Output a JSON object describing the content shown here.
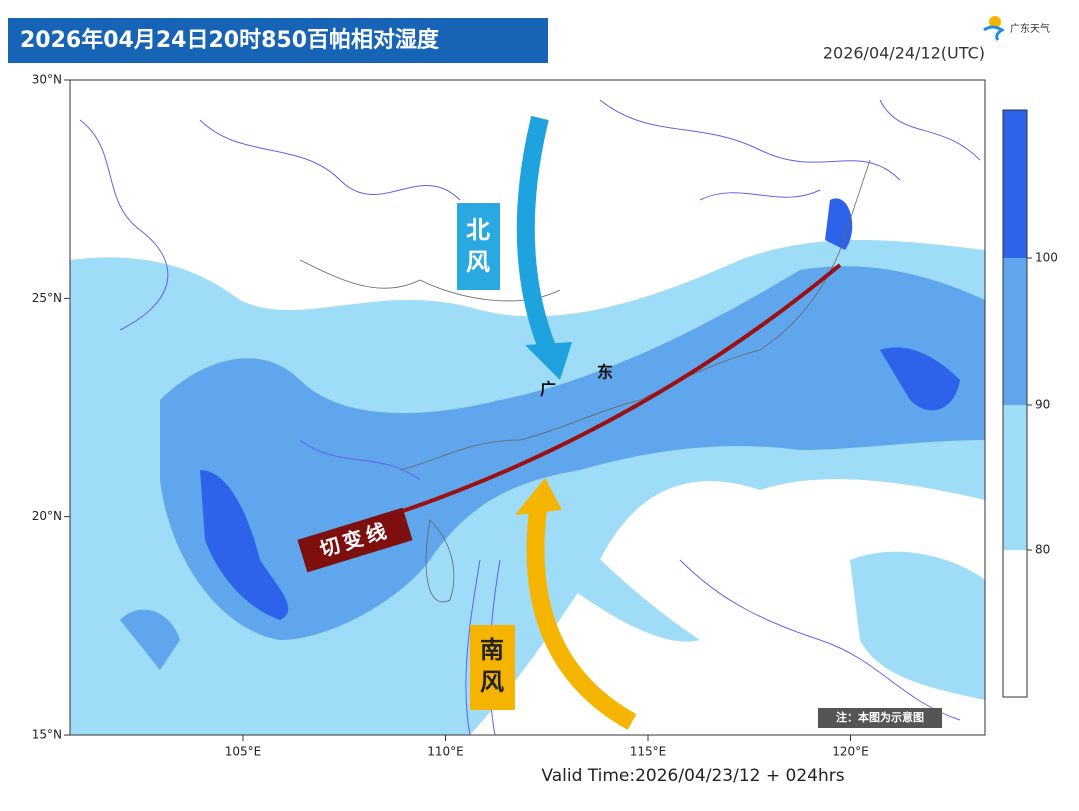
{
  "header": {
    "title": "2026年04月24日20时850百帕相对湿度",
    "time": "2026/04/24/12(UTC)",
    "logo": "广东天气"
  },
  "map": {
    "lat_ticks": [
      {
        "value": 30,
        "label": "30°N"
      },
      {
        "value": 25,
        "label": "25°N"
      },
      {
        "value": 20,
        "label": "20°N"
      },
      {
        "value": 15,
        "label": "15°N"
      }
    ],
    "lon_ticks": [
      {
        "value": 105,
        "label": "105°E"
      },
      {
        "value": 110,
        "label": "110°E"
      },
      {
        "value": 115,
        "label": "115°E"
      },
      {
        "value": 120,
        "label": "120°E"
      }
    ],
    "annotations": {
      "north_wind": "北风",
      "south_wind": "南风",
      "shear_line": "切变线",
      "guang": "广",
      "dong": "东"
    },
    "note": "注：本图为示意图",
    "valid_time": "Valid Time:2026/04/23/12 + 024hrs"
  },
  "colorbar": {
    "ticks": [
      100,
      90,
      80
    ]
  }
}
